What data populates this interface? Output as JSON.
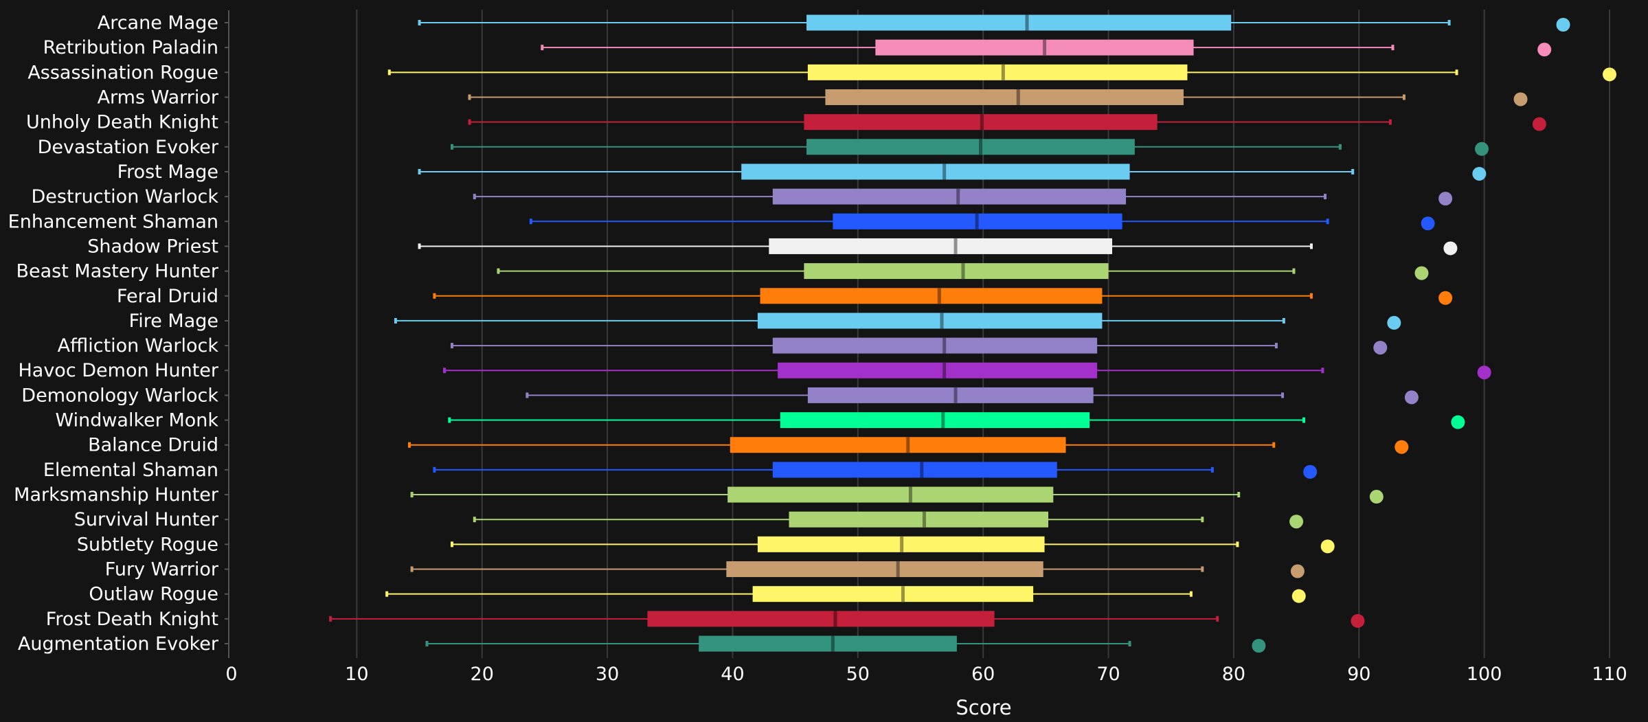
{
  "chart_data": {
    "type": "box",
    "title": "",
    "xlabel": "Score",
    "ylabel": "",
    "xlim": [
      0,
      110
    ],
    "xticks": [
      0,
      10,
      20,
      30,
      40,
      50,
      60,
      70,
      80,
      90,
      100,
      110
    ],
    "grid": "vertical",
    "legend": "none",
    "background": "#141414",
    "categories": [
      "Arcane Mage",
      "Retribution Paladin",
      "Assassination Rogue",
      "Arms Warrior",
      "Unholy Death Knight",
      "Devastation Evoker",
      "Frost Mage",
      "Destruction Warlock",
      "Enhancement Shaman",
      "Shadow Priest",
      "Beast Mastery Hunter",
      "Feral Druid",
      "Fire Mage",
      "Affliction Warlock",
      "Havoc Demon Hunter",
      "Demonology Warlock",
      "Windwalker Monk",
      "Balance Druid",
      "Elemental Shaman",
      "Marksmanship Hunter",
      "Survival Hunter",
      "Subtlety Rogue",
      "Fury Warrior",
      "Outlaw Rogue",
      "Frost Death Knight",
      "Augmentation Evoker"
    ],
    "colors": [
      "#69ccf0",
      "#f58cba",
      "#fff569",
      "#c79c6e",
      "#c41f3b",
      "#33937f",
      "#69ccf0",
      "#9482c9",
      "#2459ff",
      "#f0f0f0",
      "#abd473",
      "#ff7d0a",
      "#69ccf0",
      "#9482c9",
      "#a330c9",
      "#9482c9",
      "#00ff96",
      "#ff7d0a",
      "#2459ff",
      "#abd473",
      "#abd473",
      "#fff569",
      "#c79c6e",
      "#fff569",
      "#c41f3b",
      "#33937f"
    ],
    "min": [
      15.0,
      24.8,
      12.6,
      19.0,
      19.0,
      17.6,
      15.0,
      19.4,
      23.9,
      15.0,
      21.3,
      16.2,
      13.1,
      17.6,
      17.0,
      23.6,
      17.4,
      14.2,
      16.2,
      14.4,
      19.4,
      17.6,
      14.4,
      12.4,
      7.9,
      15.6
    ],
    "q1": [
      45.9,
      51.4,
      46.0,
      47.4,
      45.7,
      45.9,
      40.7,
      43.2,
      48.0,
      42.9,
      45.7,
      42.2,
      42.0,
      43.2,
      43.6,
      46.0,
      43.8,
      39.8,
      43.2,
      39.6,
      44.5,
      42.0,
      39.5,
      41.6,
      33.2,
      37.3
    ],
    "median": [
      63.5,
      64.9,
      61.6,
      62.8,
      59.9,
      59.8,
      56.9,
      58.0,
      59.5,
      57.8,
      58.4,
      56.5,
      56.7,
      56.9,
      56.9,
      57.8,
      56.8,
      54.0,
      55.1,
      54.2,
      55.3,
      53.5,
      53.2,
      53.6,
      48.2,
      48.0
    ],
    "q3": [
      79.8,
      76.8,
      76.3,
      76.0,
      73.9,
      72.1,
      71.7,
      71.4,
      71.1,
      70.3,
      70.0,
      69.5,
      69.5,
      69.1,
      69.1,
      68.8,
      68.5,
      66.6,
      65.9,
      65.6,
      65.2,
      64.9,
      64.8,
      64.0,
      60.9,
      57.9
    ],
    "max": [
      97.2,
      92.7,
      97.8,
      93.6,
      92.5,
      88.5,
      89.5,
      87.3,
      87.5,
      86.2,
      84.8,
      86.2,
      84.0,
      83.4,
      87.1,
      83.9,
      85.6,
      83.2,
      78.3,
      80.4,
      77.5,
      80.3,
      77.5,
      76.6,
      78.7,
      71.7
    ],
    "outliers": [
      106.3,
      104.8,
      110.0,
      102.9,
      104.4,
      99.8,
      99.6,
      96.9,
      95.5,
      97.3,
      95.0,
      96.9,
      92.8,
      91.7,
      100.0,
      94.2,
      97.9,
      93.4,
      86.1,
      91.4,
      85.0,
      87.5,
      85.1,
      85.2,
      89.9,
      82.0
    ]
  }
}
